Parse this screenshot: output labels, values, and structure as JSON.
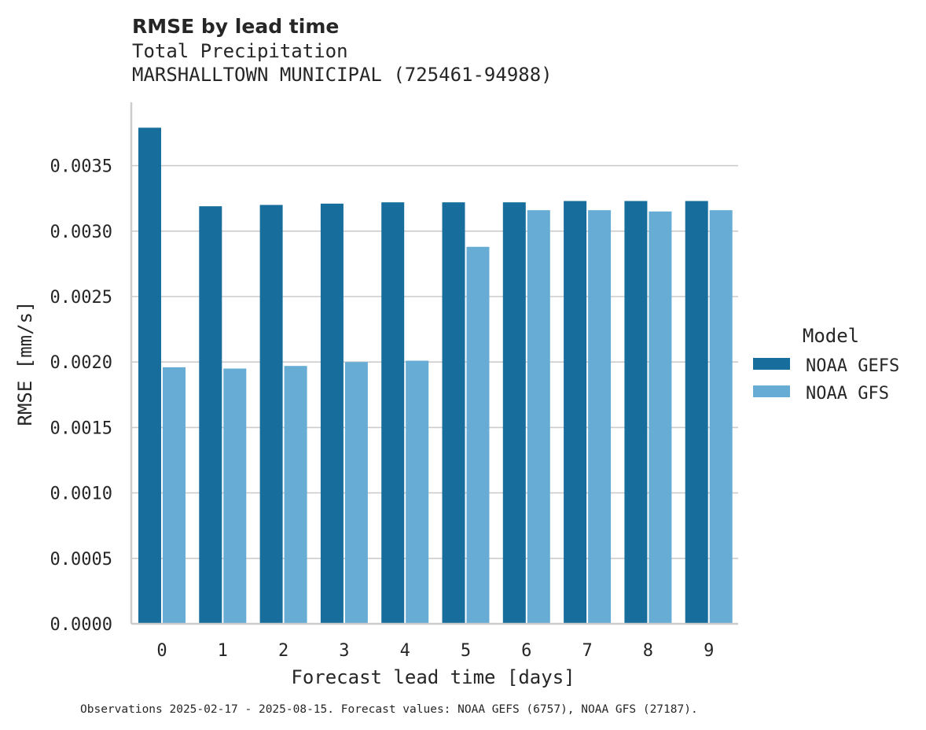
{
  "chart_data": {
    "type": "bar",
    "title": "RMSE by lead time",
    "subtitle_lines": [
      "Total Precipitation",
      "MARSHALLTOWN MUNICIPAL (725461-94988)"
    ],
    "xlabel": "Forecast lead time [days]",
    "ylabel": "RMSE [mm/s]",
    "ylim": [
      0,
      0.004
    ],
    "yticks": [
      "0.0000",
      "0.0005",
      "0.0010",
      "0.0015",
      "0.0020",
      "0.0025",
      "0.0030",
      "0.0035"
    ],
    "grid": true,
    "legend_title": "Model",
    "legend_position": "right",
    "categories": [
      "0",
      "1",
      "2",
      "3",
      "4",
      "5",
      "6",
      "7",
      "8",
      "9"
    ],
    "series": [
      {
        "name": "NOAA GEFS",
        "color": "#176d9c",
        "values": [
          0.00379,
          0.00319,
          0.0032,
          0.00321,
          0.00322,
          0.00322,
          0.00322,
          0.00323,
          0.00323,
          0.00323
        ]
      },
      {
        "name": "NOAA GFS",
        "color": "#67acd5",
        "values": [
          0.00196,
          0.00195,
          0.00197,
          0.002,
          0.00201,
          0.00288,
          0.00316,
          0.00316,
          0.00315,
          0.00316
        ]
      }
    ],
    "footnote": "Observations 2025-02-17 - 2025-08-15. Forecast values: NOAA GEFS (6757), NOAA GFS (27187)."
  },
  "colors": {
    "text": "#262626",
    "grid": "#cccccc",
    "axis": "#cccccc"
  }
}
